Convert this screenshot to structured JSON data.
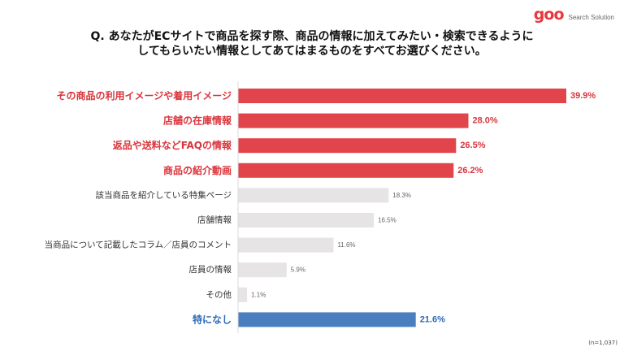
{
  "logo": {
    "brand": "goo",
    "tagline": "Search Solution"
  },
  "question": {
    "line1": "Q. あなたがECサイトで商品を探す際、商品の情報に加えてみたい・検索できるように",
    "line2": "してもらいたい情報としてあてはまるものをすべてお選びください。"
  },
  "note": "(n=1,037)",
  "colors": {
    "highlight": "#e2444b",
    "highlight_text": "#d9353c",
    "other": "#e6e4e4",
    "other_text": "#333333",
    "none": "#4a7ebf",
    "none_text": "#2d6bb5"
  },
  "chart_data": {
    "type": "bar",
    "orientation": "horizontal",
    "title": "",
    "xlabel": "",
    "ylabel": "",
    "xlim": [
      0,
      40
    ],
    "grid": false,
    "legend": "none",
    "categories": [
      "その商品の利用イメージや着用イメージ",
      "店舗の在庫情報",
      "返品や送料などFAQの情報",
      "商品の紹介動画",
      "該当商品を紹介している特集ページ",
      "店舗情報",
      "当商品について記載したコラム／店員のコメント",
      "店員の情報",
      "その他",
      "特になし"
    ],
    "values": [
      39.9,
      28.0,
      26.5,
      26.2,
      18.3,
      16.5,
      11.6,
      5.9,
      1.1,
      21.6
    ],
    "value_labels": [
      "39.9%",
      "28.0%",
      "26.5%",
      "26.2%",
      "18.3%",
      "16.5%",
      "11.6%",
      "5.9%",
      "1.1%",
      "21.6%"
    ],
    "groups": [
      "highlight",
      "highlight",
      "highlight",
      "highlight",
      "other",
      "other",
      "other",
      "other",
      "other",
      "none"
    ]
  }
}
